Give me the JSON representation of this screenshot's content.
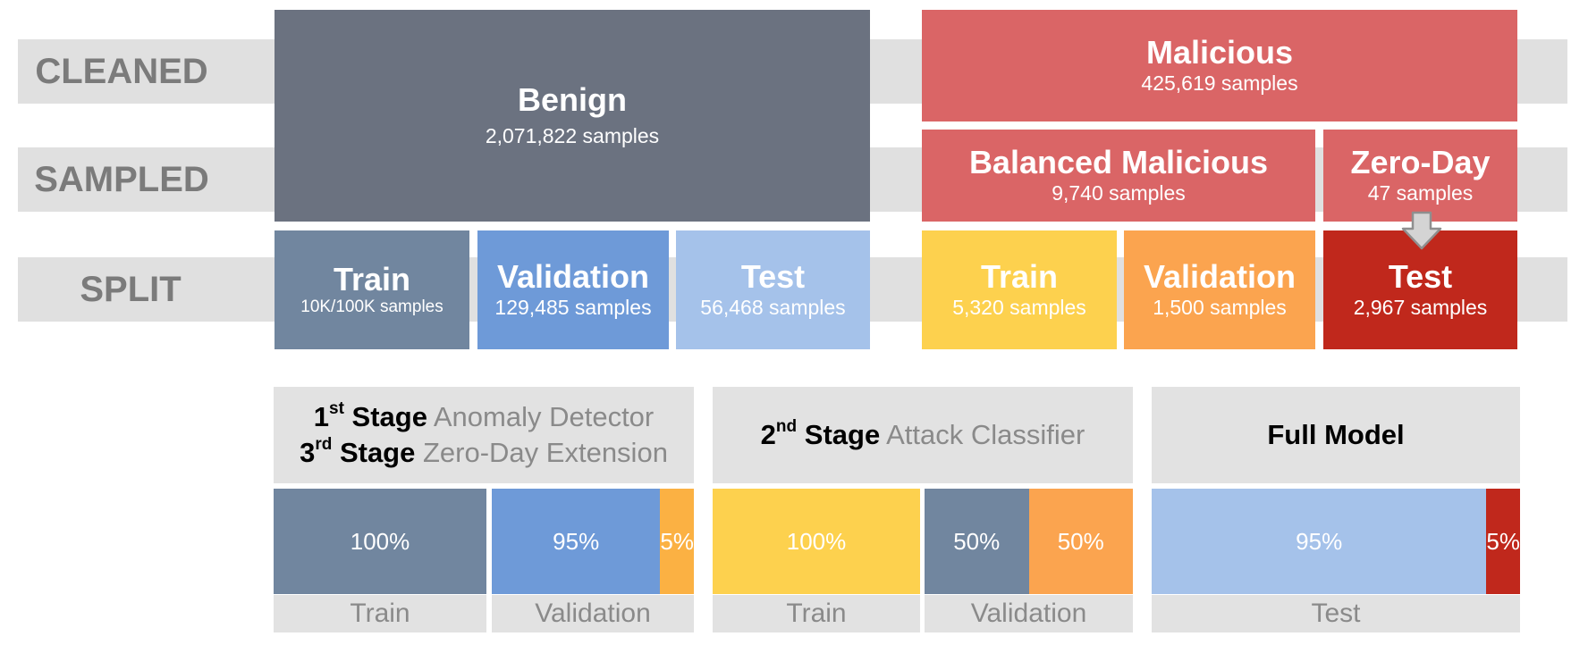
{
  "rows": {
    "cleaned": "CLEANED",
    "sampled": "SAMPLED",
    "split": "SPLIT"
  },
  "benign": {
    "title": "Benign",
    "samples": "2,071,822 samples",
    "train": {
      "title": "Train",
      "samples": "10K/100K samples"
    },
    "validation": {
      "title": "Validation",
      "samples": "129,485 samples"
    },
    "test": {
      "title": "Test",
      "samples": "56,468 samples"
    }
  },
  "malicious": {
    "title": "Malicious",
    "samples": "425,619 samples",
    "balanced": {
      "title": "Balanced Malicious",
      "samples": "9,740 samples"
    },
    "zero_day": {
      "title": "Zero-Day",
      "samples": "47 samples"
    },
    "train": {
      "title": "Train",
      "samples": "5,320 samples"
    },
    "validation": {
      "title": "Validation",
      "samples": "1,500 samples"
    },
    "test": {
      "title": "Test",
      "samples": "2,967 samples"
    }
  },
  "stages": {
    "stage1": {
      "ord": "1",
      "sup": "st",
      "bold": "Stage",
      "name": "Anomaly Detector"
    },
    "stage3": {
      "ord": "3",
      "sup": "rd",
      "bold": "Stage",
      "name": "Zero-Day Extension"
    },
    "stage2": {
      "ord": "2",
      "sup": "nd",
      "bold": "Stage",
      "name": "Attack Classifier"
    },
    "full": {
      "title": "Full Model"
    }
  },
  "compositions": {
    "s13_train": {
      "label": "Train",
      "segments": [
        {
          "value": "100%",
          "fraction": 1.0,
          "color": "#71869f"
        }
      ]
    },
    "s13_validation": {
      "label": "Validation",
      "segments": [
        {
          "value": "95%",
          "fraction": 0.95,
          "color": "#6e9ad8"
        },
        {
          "value": "5%",
          "fraction": 0.05,
          "color": "#fbb143"
        }
      ]
    },
    "s2_train": {
      "label": "Train",
      "segments": [
        {
          "value": "100%",
          "fraction": 1.0,
          "color": "#fdd14e"
        }
      ]
    },
    "s2_validation": {
      "label": "Validation",
      "segments": [
        {
          "value": "50%",
          "fraction": 0.5,
          "color": "#71869f"
        },
        {
          "value": "50%",
          "fraction": 0.5,
          "color": "#fba44f"
        }
      ]
    },
    "full_test": {
      "label": "Test",
      "segments": [
        {
          "value": "95%",
          "fraction": 0.95,
          "color": "#a5c2ea"
        },
        {
          "value": "5%",
          "fraction": 0.05,
          "color": "#c0281c"
        }
      ]
    }
  },
  "colors": {
    "benign": "#6b7280",
    "benign_train": "#71869f",
    "benign_validation": "#6e9ad8",
    "benign_test": "#a5c2ea",
    "malicious": "#da6566",
    "mal_train": "#fdd14e",
    "mal_validation": "#fba44f",
    "mal_test": "#c0281c",
    "band": "#e0e0e0"
  }
}
